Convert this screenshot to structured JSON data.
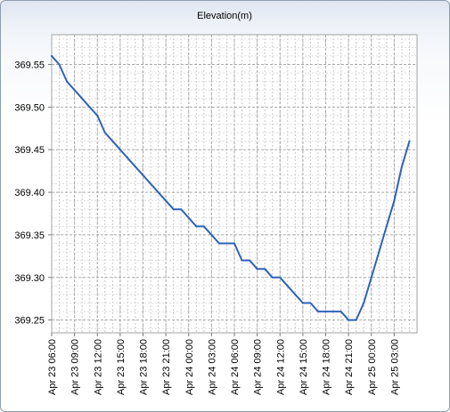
{
  "chart_data": {
    "type": "line",
    "title": "Elevation(m)",
    "xlabel": "",
    "ylabel": "",
    "x_ticks": [
      "Apr 23 06:00",
      "Apr 23 09:00",
      "Apr 23 12:00",
      "Apr 23 15:00",
      "Apr 23 18:00",
      "Apr 23 21:00",
      "Apr 24 00:00",
      "Apr 24 03:00",
      "Apr 24 06:00",
      "Apr 24 09:00",
      "Apr 24 12:00",
      "Apr 24 15:00",
      "Apr 24 18:00",
      "Apr 24 21:00",
      "Apr 25 00:00",
      "Apr 25 03:00"
    ],
    "y_ticks": [
      369.55,
      369.5,
      369.45,
      369.4,
      369.35,
      369.3,
      369.25
    ],
    "ylim": [
      369.235,
      369.585
    ],
    "xlim": [
      "Apr 23 06:00",
      "Apr 25 06:00"
    ],
    "grid": true,
    "line_color": "#2f62b8",
    "series": [
      {
        "x": [
          "Apr 23 06:00",
          "Apr 23 07:00",
          "Apr 23 08:00",
          "Apr 23 09:00",
          "Apr 23 10:00",
          "Apr 23 11:00",
          "Apr 23 12:00",
          "Apr 23 13:00",
          "Apr 23 14:00",
          "Apr 23 15:00",
          "Apr 23 16:00",
          "Apr 23 17:00",
          "Apr 23 18:00",
          "Apr 23 19:00",
          "Apr 23 20:00",
          "Apr 23 21:00",
          "Apr 23 22:00",
          "Apr 23 23:00",
          "Apr 24 00:00",
          "Apr 24 01:00",
          "Apr 24 02:00",
          "Apr 24 03:00",
          "Apr 24 04:00",
          "Apr 24 05:00",
          "Apr 24 06:00",
          "Apr 24 07:00",
          "Apr 24 08:00",
          "Apr 24 09:00",
          "Apr 24 10:00",
          "Apr 24 11:00",
          "Apr 24 12:00",
          "Apr 24 13:00",
          "Apr 24 14:00",
          "Apr 24 15:00",
          "Apr 24 16:00",
          "Apr 24 17:00",
          "Apr 24 18:00",
          "Apr 24 19:00",
          "Apr 24 20:00",
          "Apr 24 21:00",
          "Apr 24 22:00",
          "Apr 24 23:00",
          "Apr 25 00:00",
          "Apr 25 01:00",
          "Apr 25 02:00",
          "Apr 25 03:00",
          "Apr 25 04:00",
          "Apr 25 05:00"
        ],
        "values": [
          369.56,
          369.55,
          369.53,
          369.52,
          369.51,
          369.5,
          369.49,
          369.47,
          369.46,
          369.45,
          369.44,
          369.43,
          369.42,
          369.41,
          369.4,
          369.39,
          369.38,
          369.38,
          369.37,
          369.36,
          369.36,
          369.35,
          369.34,
          369.34,
          369.34,
          369.32,
          369.32,
          369.31,
          369.31,
          369.3,
          369.3,
          369.29,
          369.28,
          369.27,
          369.27,
          369.26,
          369.26,
          369.26,
          369.26,
          369.25,
          369.25,
          369.27,
          369.3,
          369.33,
          369.36,
          369.39,
          369.43,
          369.46
        ]
      }
    ]
  }
}
